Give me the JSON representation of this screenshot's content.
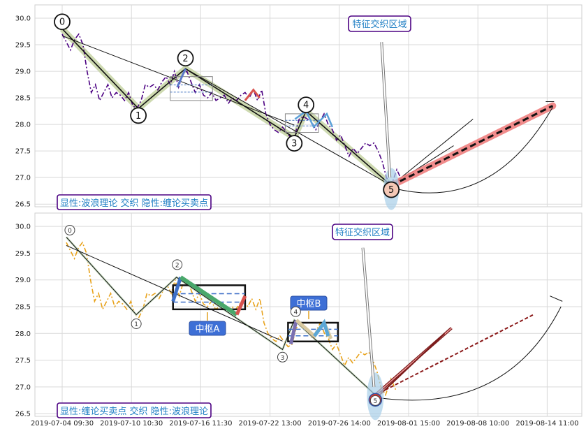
{
  "chart_data": [
    {
      "type": "line",
      "panel": "top",
      "ylim": [
        26.45,
        30.25
      ],
      "yticks": [
        "30.0",
        "29.5",
        "29.0",
        "28.5",
        "28.0",
        "27.5",
        "27.0",
        "26.5"
      ],
      "ytick_values": [
        30.0,
        29.5,
        29.0,
        28.5,
        28.0,
        27.5,
        27.0,
        26.5
      ],
      "grid": true,
      "legend_box": "显性:波浪理论 交织 隐性:缠论买卖点",
      "callout": "特征交织区域",
      "wave_labels": [
        "0",
        "1",
        "2",
        "3",
        "4",
        "5"
      ],
      "wave_points": [
        [
          0,
          29.8
        ],
        [
          11,
          28.3
        ],
        [
          17.8,
          29.05
        ],
        [
          33.5,
          27.75
        ],
        [
          35.2,
          28.25
        ],
        [
          47.5,
          26.85
        ]
      ],
      "price_series": [
        [
          0,
          29.7
        ],
        [
          0.6,
          29.55
        ],
        [
          1.2,
          29.4
        ],
        [
          1.8,
          29.6
        ],
        [
          2.4,
          29.7
        ],
        [
          3,
          29.5
        ],
        [
          3.6,
          29.0
        ],
        [
          4.2,
          28.6
        ],
        [
          4.8,
          28.75
        ],
        [
          5.4,
          28.45
        ],
        [
          6,
          28.6
        ],
        [
          6.6,
          28.75
        ],
        [
          7.2,
          28.5
        ],
        [
          7.8,
          28.6
        ],
        [
          8.4,
          28.55
        ],
        [
          9,
          28.45
        ],
        [
          9.6,
          28.6
        ],
        [
          10.2,
          28.35
        ],
        [
          10.8,
          28.3
        ],
        [
          11.4,
          28.45
        ],
        [
          12,
          28.75
        ],
        [
          12.6,
          28.7
        ],
        [
          13.2,
          28.75
        ],
        [
          13.8,
          28.65
        ],
        [
          14.4,
          28.8
        ],
        [
          15,
          28.9
        ],
        [
          15.6,
          28.75
        ],
        [
          16.2,
          29.0
        ],
        [
          16.8,
          28.7
        ],
        [
          17.4,
          28.95
        ],
        [
          18,
          29.0
        ],
        [
          18.6,
          28.8
        ],
        [
          19.2,
          28.6
        ],
        [
          19.8,
          28.75
        ],
        [
          20.4,
          28.55
        ],
        [
          21,
          28.5
        ],
        [
          21.6,
          28.6
        ],
        [
          22.2,
          28.45
        ],
        [
          22.8,
          28.5
        ],
        [
          23.4,
          28.55
        ],
        [
          24,
          28.4
        ],
        [
          24.6,
          28.5
        ],
        [
          25.2,
          28.45
        ],
        [
          25.8,
          28.55
        ],
        [
          26.4,
          28.6
        ],
        [
          27,
          28.5
        ],
        [
          27.6,
          28.65
        ],
        [
          28.2,
          28.45
        ],
        [
          28.8,
          28.65
        ],
        [
          29.4,
          28.2
        ],
        [
          30,
          28.0
        ],
        [
          30.6,
          27.9
        ],
        [
          31.2,
          27.85
        ],
        [
          31.8,
          27.95
        ],
        [
          32.4,
          27.85
        ],
        [
          33,
          27.75
        ],
        [
          33.6,
          27.8
        ],
        [
          34.2,
          28.1
        ],
        [
          34.8,
          28.15
        ],
        [
          35.4,
          28.1
        ],
        [
          36,
          28.05
        ],
        [
          36.6,
          27.9
        ],
        [
          37.2,
          28.05
        ],
        [
          37.8,
          28.2
        ],
        [
          38.4,
          28.0
        ],
        [
          39,
          27.9
        ],
        [
          39.6,
          27.7
        ],
        [
          40.2,
          27.8
        ],
        [
          40.8,
          27.6
        ],
        [
          41.4,
          27.4
        ],
        [
          42,
          27.55
        ],
        [
          42.6,
          27.45
        ],
        [
          43.2,
          27.55
        ],
        [
          43.8,
          27.65
        ],
        [
          44.4,
          27.6
        ],
        [
          45,
          27.65
        ],
        [
          45.6,
          27.5
        ],
        [
          46.2,
          27.3
        ],
        [
          46.8,
          27.0
        ],
        [
          47.5,
          26.85
        ],
        [
          48.3,
          27.15
        ],
        [
          49,
          26.95
        ]
      ],
      "boxes": [
        [
          15.6,
          28.45,
          21.7,
          28.9
        ],
        [
          32.2,
          27.85,
          37.0,
          28.2
        ]
      ],
      "projection": [
        [
          47.5,
          26.85
        ],
        [
          70.8,
          28.35
        ]
      ]
    },
    {
      "type": "line",
      "panel": "bottom",
      "ylim": [
        26.45,
        30.25
      ],
      "yticks": [
        "30.0",
        "29.5",
        "29.0",
        "28.5",
        "28.0",
        "27.5",
        "27.0",
        "26.5"
      ],
      "ytick_values": [
        30.0,
        29.5,
        29.0,
        28.5,
        28.0,
        27.5,
        27.0,
        26.5
      ],
      "xticks": [
        "2019-07-04 09:30",
        "2019-07-10 10:30",
        "2019-07-16 11:30",
        "2019-07-22 13:00",
        "2019-07-26 14:00",
        "2019-08-01 15:00",
        "2019-08-08 10:00",
        "2019-08-14 11:00"
      ],
      "xtick_positions": [
        0,
        10,
        20,
        30,
        40,
        50,
        60,
        70
      ],
      "grid": true,
      "legend_box": "显性:缠论买卖点 交织 隐性:波浪理论",
      "callout": "特征交织区域",
      "pivot_labels": [
        "中枢A",
        "中枢B"
      ],
      "wave_labels": [
        "0",
        "1",
        "2",
        "3",
        "4",
        "5"
      ],
      "wave_points": [
        [
          0.6,
          29.8
        ],
        [
          10.7,
          28.35
        ],
        [
          16.5,
          29.05
        ],
        [
          31.8,
          27.7
        ],
        [
          33.5,
          28.25
        ],
        [
          45.2,
          26.85
        ]
      ],
      "pivots": [
        [
          16.0,
          28.45,
          26.4,
          28.9
        ],
        [
          32.6,
          27.85,
          39.8,
          28.2
        ]
      ],
      "projection": [
        [
          45.2,
          26.85
        ],
        [
          68.0,
          28.35
        ]
      ]
    }
  ]
}
